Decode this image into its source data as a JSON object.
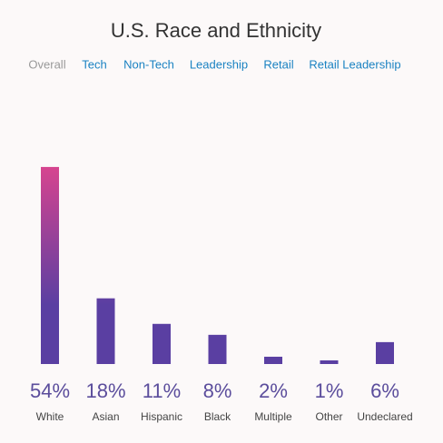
{
  "chart_data": {
    "type": "bar",
    "title": "U.S. Race and Ethnicity",
    "tabs": [
      "Overall",
      "Tech",
      "Non-Tech",
      "Leadership",
      "Retail",
      "Retail Leadership"
    ],
    "selected_tab": 0,
    "categories": [
      "White",
      "Asian",
      "Hispanic",
      "Black",
      "Multiple",
      "Other",
      "Undeclared"
    ],
    "values": [
      54,
      18,
      11,
      8,
      2,
      1,
      6
    ],
    "value_labels": [
      "54%",
      "18%",
      "11%",
      "8%",
      "2%",
      "1%",
      "6%"
    ],
    "gradient": [
      "#d6448f",
      "#5a3fa2"
    ]
  }
}
